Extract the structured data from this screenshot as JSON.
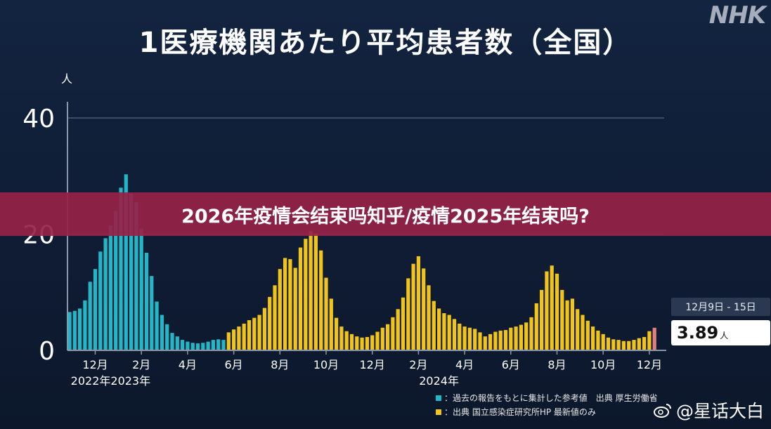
{
  "title": "1医療機関あたり平均患者数（全国）",
  "logo": "NHK",
  "banner": "2026年疫情会结束吗知乎/疫情2025年结束吗?",
  "watermark": "@星话大白",
  "colors": {
    "historical": "#22b6c6",
    "current": "#f0c419",
    "latest": "#e08080",
    "background": "#132440",
    "grid": "#5a6a80",
    "banner": "#962246"
  },
  "callout": {
    "date": "12月9日 - 15日",
    "value": "3.89",
    "unit": "人"
  },
  "legend": [
    {
      "label": "：過去の報告をもとに集計した参考値　出典 厚生労働省",
      "color": "#22b6c6"
    },
    {
      "label": "：出典 国立感染症研究所HP 最新値のみ",
      "color": "#f0c419"
    }
  ],
  "chart_data": {
    "type": "bar",
    "title": "1医療機関あたり平均患者数（全国）",
    "ylabel": "人",
    "ylim": [
      0,
      40
    ],
    "yticks": [
      0,
      20,
      40
    ],
    "grid": true,
    "xticks": [
      {
        "label": "12月",
        "week": 5
      },
      {
        "label": "2月",
        "week": 14
      },
      {
        "label": "4月",
        "week": 23
      },
      {
        "label": "6月",
        "week": 32
      },
      {
        "label": "8月",
        "week": 41
      },
      {
        "label": "10月",
        "week": 50
      },
      {
        "label": "12月",
        "week": 59
      },
      {
        "label": "2月",
        "week": 68
      },
      {
        "label": "4月",
        "week": 77
      },
      {
        "label": "6月",
        "week": 86
      },
      {
        "label": "8月",
        "week": 95
      },
      {
        "label": "10月",
        "week": 104
      },
      {
        "label": "12月",
        "week": 113
      }
    ],
    "year_labels": [
      {
        "label": "2022年2023年",
        "week": 8
      },
      {
        "label": "2024年",
        "week": 72
      }
    ],
    "series": [
      {
        "name": "：過去の報告をもとに集計した参考値　出典 厚生労働省",
        "color": "#22b6c6",
        "start_week": 0,
        "values": [
          6.6,
          6.8,
          7.2,
          8.6,
          11.8,
          14,
          17,
          19.3,
          21.5,
          24,
          28,
          30.3,
          27,
          25.5,
          21,
          16.8,
          12.8,
          8.4,
          6.1,
          4.5,
          3,
          2.4,
          1.8,
          1.5,
          1.3,
          1.2,
          1.3,
          1.5,
          1.8,
          1.9,
          1.8
        ]
      },
      {
        "name": "：出典 国立感染症研究所HP 最新値のみ",
        "color": "#f0c419",
        "start_week": 31,
        "values": [
          3.1,
          3.6,
          4.1,
          4.6,
          5.2,
          5.6,
          6.1,
          7.3,
          9.2,
          11.2,
          14,
          15.9,
          15.7,
          14.2,
          17.7,
          19.2,
          20.5,
          20.1,
          17.2,
          12.5,
          8.9,
          5.6,
          4.1,
          3.3,
          2.8,
          2.4,
          2.2,
          2.3,
          2.6,
          3.2,
          3.9,
          4.5,
          5.7,
          7.1,
          9.1,
          12.4,
          14.9,
          16.2,
          14.1,
          11.2,
          8.5,
          7.2,
          6.4,
          6.1,
          5.4,
          4.6,
          4.1,
          3.9,
          3.7,
          3.1,
          2.4,
          2.8,
          3.2,
          3.4,
          3.5,
          3.9,
          4.1,
          4.4,
          4.8,
          5.7,
          8.1,
          10.4,
          13.6,
          14.6,
          13.2,
          10.4,
          8.6,
          8.9,
          7.1,
          6.1,
          5.1,
          4.1,
          3.4,
          2.8,
          2.2,
          1.9,
          1.8,
          1.6,
          1.6,
          1.8,
          2.1,
          2.3,
          3.3
        ]
      },
      {
        "name": "12月9日 - 15日",
        "color": "#e08080",
        "start_week": 114,
        "values": [
          3.89
        ]
      }
    ]
  }
}
